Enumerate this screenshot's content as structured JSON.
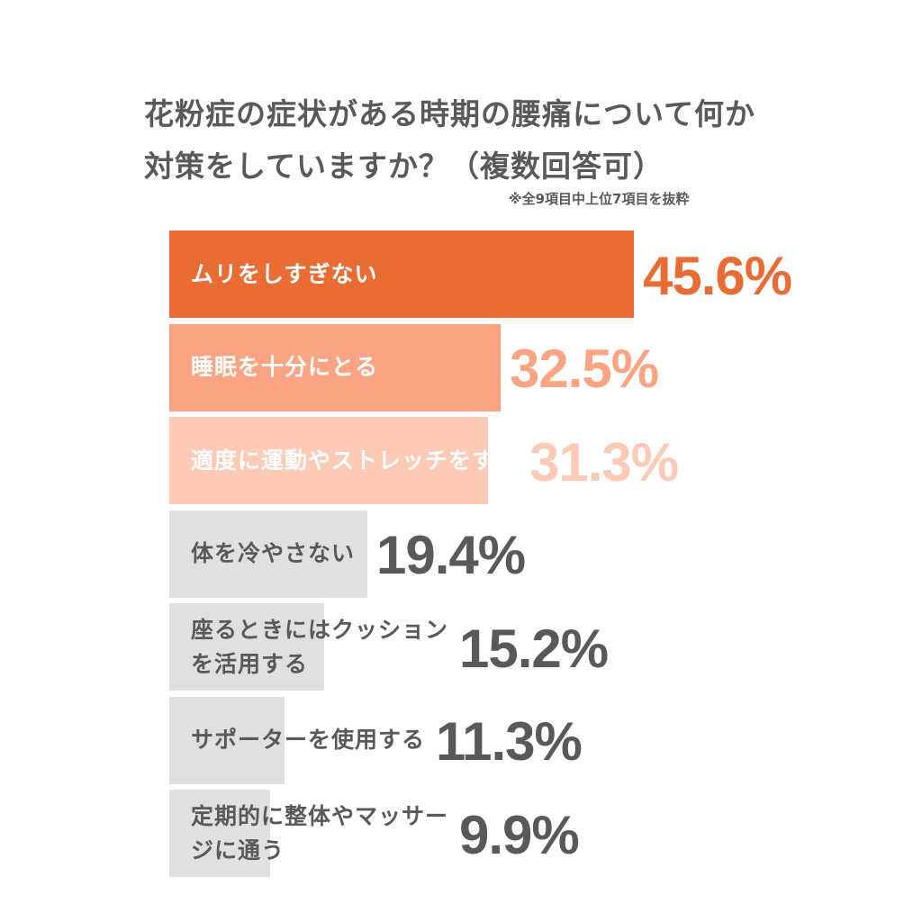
{
  "title": "花粉症の症状がある時期の腰痛について何か対策をしていますか？（複数回答可）",
  "note": "※全9項目中上位7項目を抜粋",
  "colors": {
    "top": "#e86c34",
    "second": "#fba483",
    "third": "#fdcab6",
    "rest": "#e0e0e0",
    "label_light": "#ffffff",
    "label_dark": "#595959"
  },
  "chart_data": {
    "type": "bar",
    "orientation": "horizontal",
    "title": "花粉症の症状がある時期の腰痛について何か対策をしていますか？（複数回答可）",
    "note": "※全9項目中上位7項目を抜粋",
    "unit": "%",
    "categories": [
      "ムリをしすぎない",
      "睡眠を十分にとる",
      "適度に運動やストレッチをする",
      "体を冷やさない",
      "座るときにはクッションを活用する",
      "サポーターを使用する",
      "定期的に整体やマッサージに通う"
    ],
    "values": [
      45.6,
      32.5,
      31.3,
      19.4,
      15.2,
      11.3,
      9.9
    ],
    "value_labels": [
      "45.6%",
      "32.5%",
      "31.3%",
      "19.4%",
      "15.2%",
      "11.3%",
      "9.9%"
    ],
    "xlim": [
      0,
      45.6
    ],
    "grid": false,
    "legend": "none"
  }
}
